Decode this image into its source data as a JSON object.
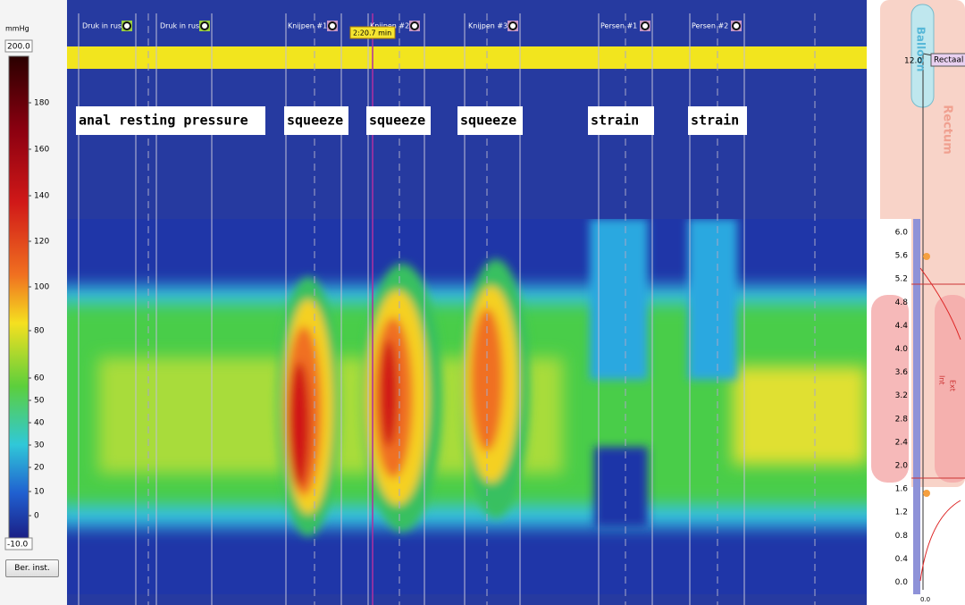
{
  "scale": {
    "unit": "mmHg",
    "max": "200.0",
    "ticks": [
      "180",
      "160",
      "140",
      "120",
      "100",
      "80",
      "60",
      "50",
      "40",
      "30",
      "20",
      "10",
      "0"
    ],
    "min": "-10.0"
  },
  "button": "Ber. inst.",
  "time_cursor": "2:20.7 min",
  "events": [
    "Druk in rus",
    "Druk in rus",
    "Knijpen #1",
    "Knijpen #2",
    "Knijpen #3",
    "Persen #1",
    "Persen #2"
  ],
  "annotations": [
    "anal resting pressure",
    "squeeze",
    "squeeze",
    "squeeze",
    "strain",
    "strain"
  ],
  "sensor_panel": {
    "balloon": "Balloon",
    "rectum": "Rectum",
    "balloon_depth": "12.0",
    "channel": "Rectaal",
    "depth_ticks": [
      "6.0",
      "5.6",
      "5.2",
      "4.8",
      "4.4",
      "4.0",
      "3.6",
      "3.2",
      "2.8",
      "2.4",
      "2.0",
      "1.6",
      "1.2",
      "0.8",
      "0.4",
      "0.0"
    ],
    "ext": "Ext",
    "int": "Int",
    "axis_min": "0.0"
  }
}
